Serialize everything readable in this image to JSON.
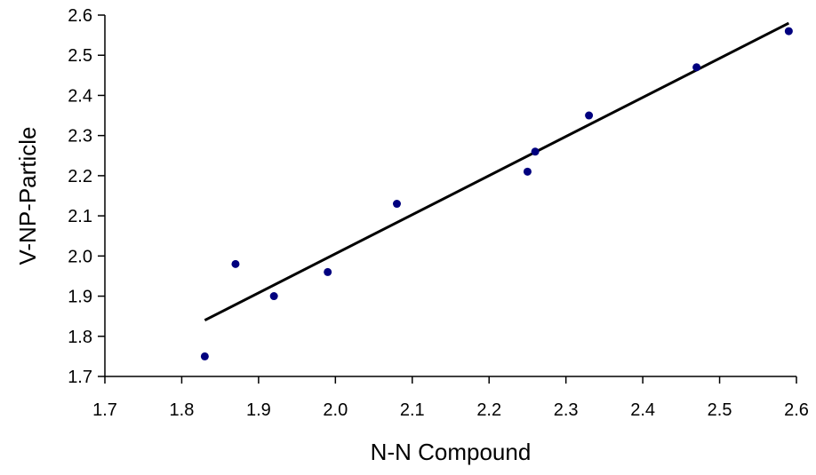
{
  "chart_data": {
    "type": "scatter",
    "title": "",
    "xlabel": "N-N Compound",
    "ylabel": "V-NP-Particle",
    "xlim": [
      1.7,
      2.6
    ],
    "ylim": [
      1.7,
      2.6
    ],
    "x_ticks": [
      "1.7",
      "1.8",
      "1.9",
      "2.0",
      "2.1",
      "2.2",
      "2.3",
      "2.4",
      "2.5",
      "2.6"
    ],
    "y_ticks": [
      "1.7",
      "1.8",
      "1.9",
      "2.0",
      "2.1",
      "2.2",
      "2.3",
      "2.4",
      "2.5",
      "2.6"
    ],
    "grid": false,
    "legend": "none",
    "marker_color": "#00007f",
    "line_color": "#000000",
    "series": [
      {
        "points": [
          {
            "x": 1.83,
            "y": 1.75
          },
          {
            "x": 1.87,
            "y": 1.98
          },
          {
            "x": 1.92,
            "y": 1.9
          },
          {
            "x": 1.99,
            "y": 1.96
          },
          {
            "x": 2.08,
            "y": 2.13
          },
          {
            "x": 2.25,
            "y": 2.21
          },
          {
            "x": 2.26,
            "y": 2.26
          },
          {
            "x": 2.33,
            "y": 2.35
          },
          {
            "x": 2.47,
            "y": 2.47
          },
          {
            "x": 2.59,
            "y": 2.56
          }
        ]
      }
    ],
    "trendline": {
      "type": "linear",
      "from": {
        "x": 1.83,
        "y": 1.84
      },
      "to": {
        "x": 2.59,
        "y": 2.58
      }
    }
  }
}
